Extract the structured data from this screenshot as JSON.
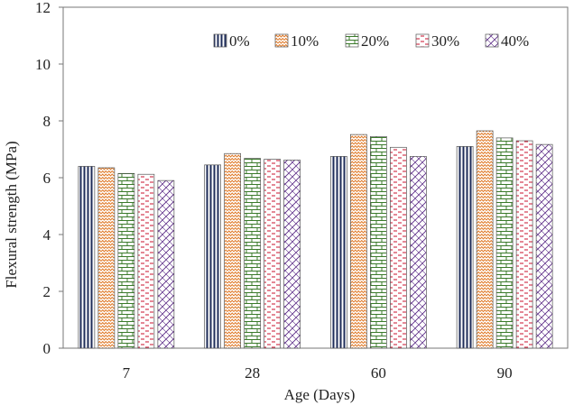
{
  "chart_data": {
    "type": "bar",
    "xlabel": "Age (Days)",
    "ylabel": "Flexural strength (MPa)",
    "ylim": [
      0,
      12
    ],
    "yticks": [
      0,
      2,
      4,
      6,
      8,
      10,
      12
    ],
    "grid": false,
    "legend_position": "top-right",
    "categories": [
      "7",
      "28",
      "60",
      "90"
    ],
    "series": [
      {
        "name": "0%",
        "pattern": "vertical-lines",
        "color": "#1f2d5a",
        "values": [
          6.4,
          6.45,
          6.75,
          7.1
        ]
      },
      {
        "name": "10%",
        "pattern": "zigzag",
        "color": "#e07b2a",
        "values": [
          6.35,
          6.85,
          7.52,
          7.65
        ]
      },
      {
        "name": "20%",
        "pattern": "brick",
        "color": "#3a7a2a",
        "values": [
          6.15,
          6.68,
          7.45,
          7.4
        ]
      },
      {
        "name": "30%",
        "pattern": "dashed-horizontal",
        "color": "#c8102e",
        "values": [
          6.12,
          6.65,
          7.07,
          7.3
        ]
      },
      {
        "name": "40%",
        "pattern": "diagonal-crosshatch",
        "color": "#5b2a86",
        "values": [
          5.9,
          6.62,
          6.75,
          7.17
        ]
      }
    ]
  }
}
